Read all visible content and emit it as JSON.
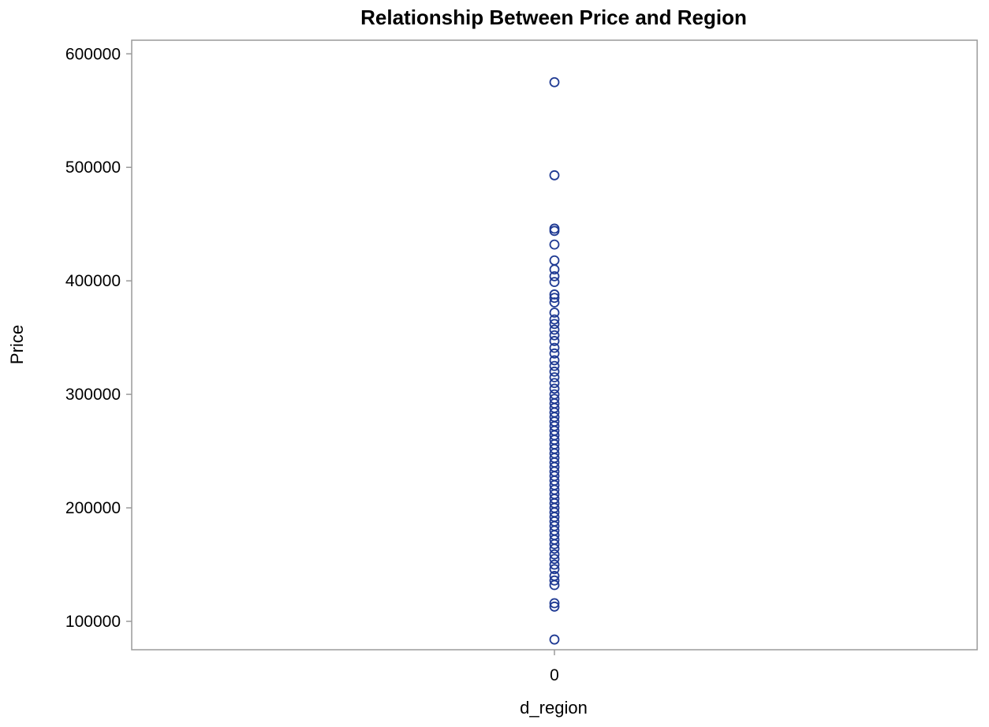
{
  "chart_data": {
    "type": "scatter",
    "title": "Relationship Between Price and Region",
    "xlabel": "d_region",
    "ylabel": "Price",
    "x_ticks": [
      "0"
    ],
    "y_ticks": [
      100000,
      200000,
      300000,
      400000,
      500000,
      600000
    ],
    "ylim": [
      75000,
      612000
    ],
    "grid": false,
    "marker": "open-circle",
    "marker_color": "#1f3a93",
    "frame_color": "#9a9a9a",
    "series": [
      {
        "name": "Price",
        "x": 0,
        "values": [
          575000,
          493000,
          446000,
          444000,
          432000,
          418000,
          410000,
          404000,
          399000,
          388000,
          385000,
          381000,
          372000,
          366000,
          362000,
          357000,
          352000,
          347000,
          341000,
          336000,
          330000,
          325000,
          320000,
          315000,
          310000,
          305000,
          300000,
          296000,
          292000,
          288000,
          284000,
          280000,
          276000,
          272000,
          268000,
          264000,
          260000,
          256000,
          252000,
          248000,
          244000,
          240000,
          236000,
          232000,
          228000,
          224000,
          220000,
          216000,
          212000,
          208000,
          204000,
          200000,
          196000,
          192000,
          188000,
          184000,
          180000,
          176000,
          172000,
          168000,
          164000,
          159000,
          155000,
          150000,
          146000,
          140000,
          136000,
          132000,
          116000,
          113000,
          84000
        ]
      }
    ]
  }
}
